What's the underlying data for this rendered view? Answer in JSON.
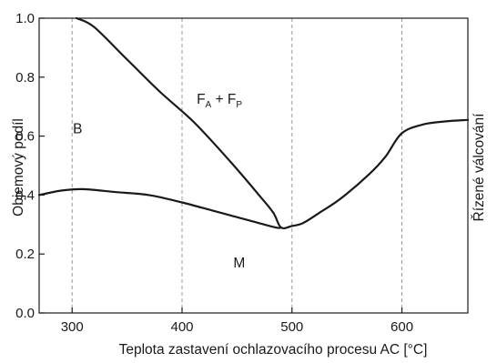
{
  "chart_data": {
    "type": "line",
    "xlabel": "Teplota zastavení ochlazovacího procesu AC [°C]",
    "ylabel": "Objemový podíl",
    "right_label": "Řízené válcování",
    "xlim": [
      270,
      660
    ],
    "ylim": [
      0.0,
      1.0
    ],
    "x_ticks": [
      300,
      400,
      500,
      600
    ],
    "y_ticks": [
      0.0,
      0.2,
      0.4,
      0.6,
      0.8,
      1.0
    ],
    "x_tick_labels": [
      "300",
      "400",
      "500",
      "600"
    ],
    "y_tick_labels": [
      "0.0",
      "0.2",
      "0.4",
      "0.6",
      "0.8",
      "1.0"
    ],
    "vertical_gridlines": true,
    "gridline_style": "dashed",
    "series": [
      {
        "id": "upper",
        "x": [
          304,
          320,
          350,
          380,
          410,
          440,
          470,
          483,
          490,
          500,
          510,
          525,
          545,
          570,
          585,
          600,
          620,
          640,
          660
        ],
        "y": [
          1.0,
          0.97,
          0.86,
          0.75,
          0.65,
          0.53,
          0.4,
          0.34,
          0.29,
          0.295,
          0.305,
          0.34,
          0.39,
          0.47,
          0.53,
          0.61,
          0.64,
          0.65,
          0.655
        ]
      },
      {
        "id": "lower",
        "x": [
          270,
          290,
          310,
          340,
          370,
          400,
          430,
          460,
          485,
          490
        ],
        "y": [
          0.4,
          0.415,
          0.42,
          0.41,
          0.4,
          0.375,
          0.345,
          0.315,
          0.29,
          0.29
        ]
      }
    ],
    "regions": [
      {
        "text": "B",
        "x": 305,
        "y": 0.625
      },
      {
        "text": "M",
        "x": 452,
        "y": 0.17
      },
      {
        "parts": [
          "F",
          "A",
          " + F",
          "P"
        ],
        "x": 434,
        "y": 0.725
      }
    ]
  }
}
